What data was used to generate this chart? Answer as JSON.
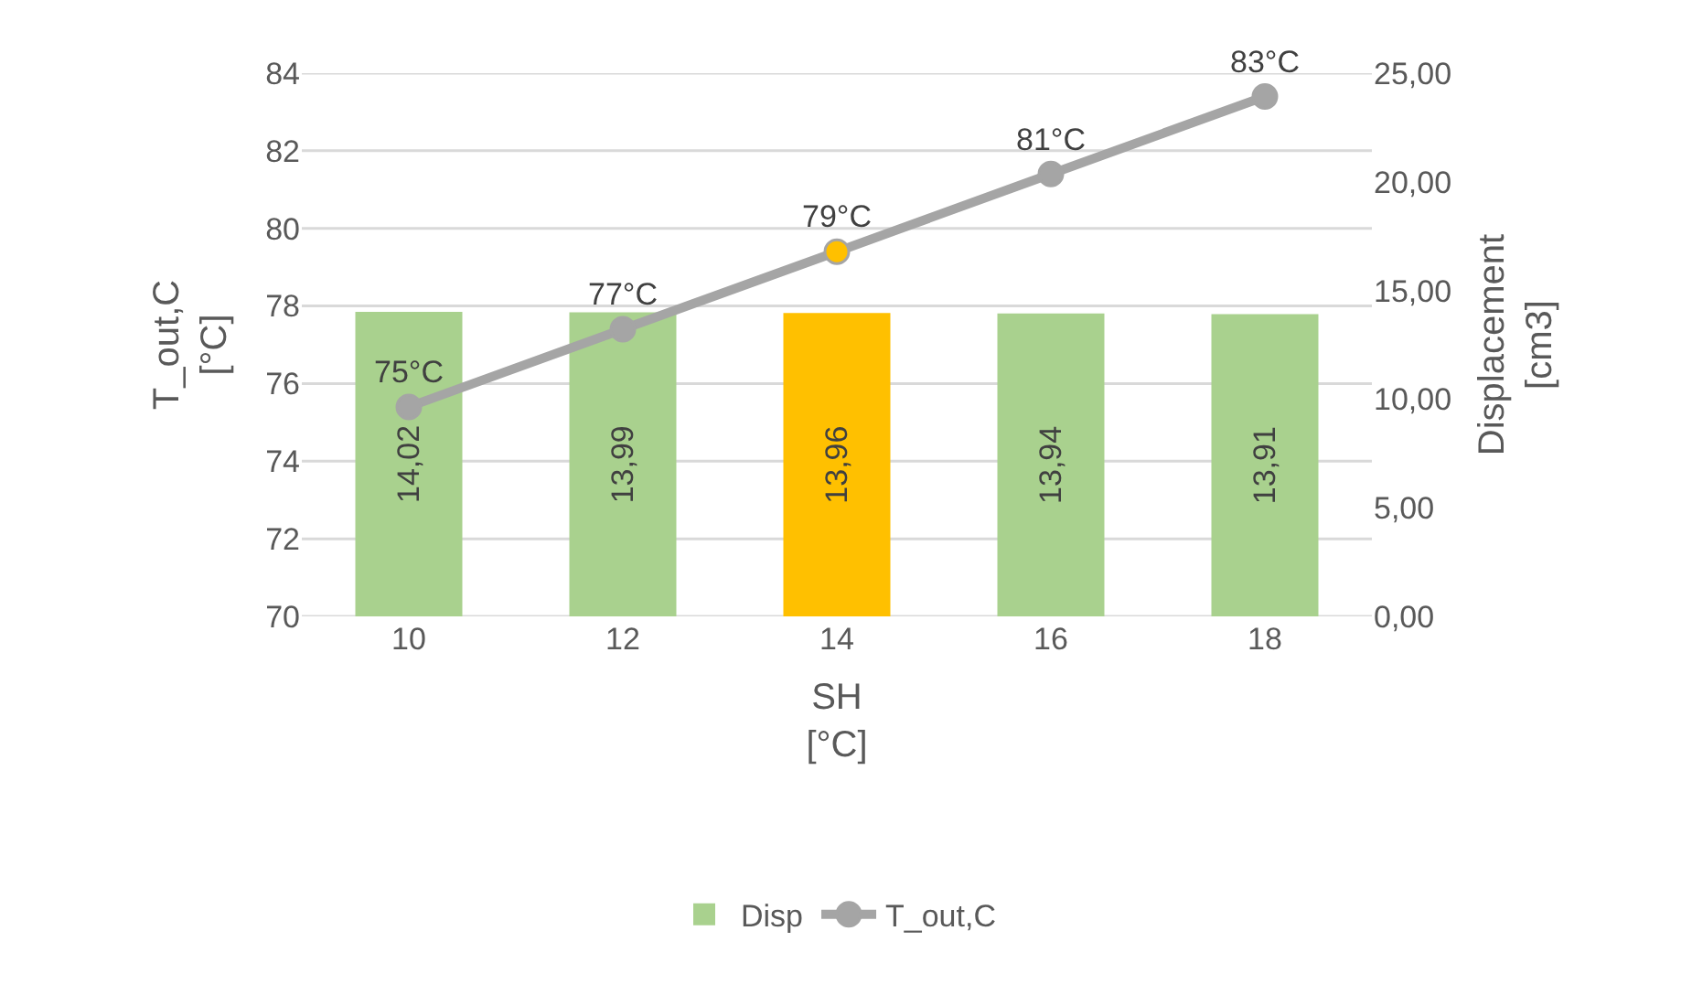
{
  "chart_data": {
    "type": "bar",
    "categories": [
      "10",
      "12",
      "14",
      "16",
      "18"
    ],
    "xlabel": "SH\n[°C]",
    "ylabel": "T_out,C\n[°C]",
    "y2label": "Displacement\n[cm3]",
    "ylim": [
      70,
      84
    ],
    "yticks": [
      70,
      72,
      74,
      76,
      78,
      80,
      82,
      84
    ],
    "y2lim": [
      0,
      25
    ],
    "y2ticks": [
      {
        "value": 0,
        "label": "0,00"
      },
      {
        "value": 5,
        "label": "5,00"
      },
      {
        "value": 10,
        "label": "10,00"
      },
      {
        "value": 15,
        "label": "15,00"
      },
      {
        "value": 20,
        "label": "20,00"
      },
      {
        "value": 25,
        "label": "25,00"
      }
    ],
    "grid": "y",
    "legend": "bottom",
    "marker": "circle",
    "line_style": "solid",
    "series": [
      {
        "name": "Disp",
        "axis": "y2",
        "color": "#a9d18e",
        "colors": [
          null,
          null,
          "#ffc000",
          null,
          null
        ],
        "values": [
          14.02,
          13.99,
          13.96,
          13.94,
          13.91
        ],
        "value_labels": [
          "14,02",
          "13,99",
          "13,96",
          "13,94",
          "13,91"
        ]
      },
      {
        "name": "T_out,C",
        "type": "line",
        "color": "#a5a5a5",
        "colors": [
          null,
          null,
          "#ffc000",
          null,
          null
        ],
        "values": [
          75.4,
          77.4,
          79.4,
          81.4,
          83.4
        ],
        "value_labels": [
          "75°C",
          "77°C",
          "79°C",
          "81°C",
          "83°C"
        ]
      }
    ]
  }
}
